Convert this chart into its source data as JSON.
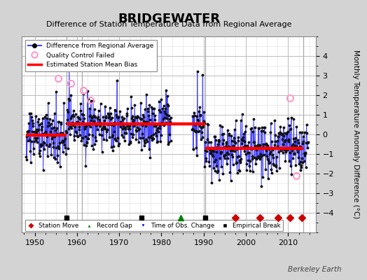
{
  "title": "BRIDGEWATER",
  "subtitle": "Difference of Station Temperature Data from Regional Average",
  "ylabel": "Monthly Temperature Anomaly Difference (°C)",
  "xlim": [
    1947,
    2016.5
  ],
  "ylim": [
    -5,
    5
  ],
  "yticks": [
    -4,
    -3,
    -2,
    -1,
    0,
    1,
    2,
    3,
    4
  ],
  "xticks": [
    1950,
    1960,
    1970,
    1980,
    1990,
    2000,
    2010
  ],
  "fig_bg_color": "#d3d3d3",
  "plot_bg_color": "#ffffff",
  "grid_major_color": "#bbbbbb",
  "grid_minor_color": "#dddddd",
  "line_color": "#4444ff",
  "marker_color": "#111111",
  "bias_color": "#ff0000",
  "qc_color": "#ff99cc",
  "watermark": "Berkeley Earth",
  "vertical_lines": [
    1957.5,
    1961.2,
    1990.3,
    2013.5
  ],
  "bias_segments": [
    {
      "x": [
        1948.0,
        1957.5
      ],
      "y": [
        -0.05,
        -0.05
      ]
    },
    {
      "x": [
        1957.5,
        1990.3
      ],
      "y": [
        0.52,
        0.52
      ]
    },
    {
      "x": [
        1990.3,
        2013.5
      ],
      "y": [
        -0.72,
        -0.72
      ]
    }
  ],
  "qc_points": [
    [
      1955.5,
      2.85
    ],
    [
      1958.5,
      2.6
    ],
    [
      1961.5,
      2.25
    ],
    [
      1963.2,
      1.75
    ],
    [
      2010.5,
      1.85
    ],
    [
      2012.0,
      -2.1
    ]
  ],
  "event_y": -4.25,
  "station_moves": [
    1997.5,
    2003.3,
    2007.6,
    2010.5,
    2013.2
  ],
  "record_gaps": [
    1984.5
  ],
  "obs_changes": [],
  "empirical_breaks": [
    1957.5,
    1975.2,
    1990.3
  ],
  "seg1_mean": -0.05,
  "seg2_mean": 0.52,
  "seg3_mean": -0.72,
  "seg_std": 0.68,
  "spike_y_1988": 3.2,
  "spike_y_1990": 3.05
}
